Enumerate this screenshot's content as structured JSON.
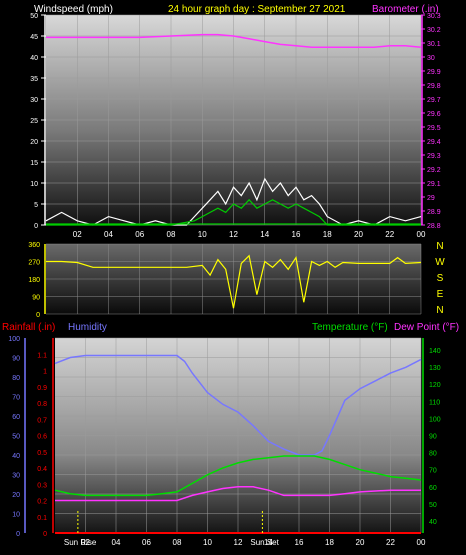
{
  "header": {
    "windspeed_label": "Windspeed (mph)",
    "title": "24 hour graph day : September 27 2021",
    "barometer_label": "Barometer (.in)"
  },
  "colors": {
    "wind": "#ffffff",
    "gust": "#00cc00",
    "barometer": "#ff33ff",
    "direction": "#ffff00",
    "humidity": "#7777ff",
    "temperature": "#00dd00",
    "dewpoint": "#ff33ff",
    "rainfall": "#ff0000",
    "sun": "#ffff00"
  },
  "compass": [
    "N",
    "W",
    "S",
    "E",
    "N"
  ],
  "lower_labels": {
    "rainfall": "Rainfall (.in)",
    "humidity": "Humidity",
    "temperature": "Temperature (°F)",
    "dewpoint": "Dew Point (°F)",
    "sunrise": "Sun Rise",
    "sunset": "Sun Set"
  },
  "chart_data": [
    {
      "type": "line",
      "title": "24 hour graph day : September 27 2021",
      "x_ticks": [
        "02",
        "04",
        "06",
        "08",
        "10",
        "12",
        "14",
        "16",
        "18",
        "20",
        "22",
        "00"
      ],
      "y_left": {
        "label": "Windspeed (mph)",
        "ticks": [
          0,
          5,
          10,
          15,
          20,
          25,
          30,
          35,
          40,
          45,
          50
        ],
        "lim": [
          0,
          50
        ]
      },
      "y_right": {
        "label": "Barometer (.in)",
        "ticks": [
          "28.8",
          "28.9",
          "29",
          "29.1",
          "29.2",
          "29.3",
          "29.4",
          "29.5",
          "29.6",
          "29.7",
          "29.8",
          "29.9",
          "30",
          "30.1",
          "30.2",
          "30.3"
        ],
        "lim": [
          28.8,
          30.3
        ]
      },
      "series": [
        {
          "name": "Barometer",
          "axis": "right",
          "x": [
            0,
            2,
            4,
            6,
            8,
            10,
            11,
            12,
            13,
            14,
            15,
            16,
            17,
            18,
            19,
            20,
            21,
            22,
            23,
            24
          ],
          "values": [
            30.14,
            30.14,
            30.14,
            30.14,
            30.15,
            30.16,
            30.16,
            30.15,
            30.13,
            30.11,
            30.09,
            30.08,
            30.07,
            30.07,
            30.07,
            30.07,
            30.07,
            30.08,
            30.08,
            30.07
          ]
        },
        {
          "name": "Wind gust",
          "axis": "left",
          "x": [
            0,
            1,
            2,
            3,
            4,
            5,
            6,
            7,
            8,
            9,
            9.5,
            10,
            10.5,
            11,
            11.5,
            12,
            12.5,
            13,
            13.5,
            14,
            14.5,
            15,
            15.5,
            16,
            16.5,
            17,
            17.5,
            18,
            19,
            20,
            21,
            22,
            23,
            24
          ],
          "values": [
            1,
            3,
            1,
            0,
            2,
            1,
            0,
            1,
            0,
            0,
            2,
            4,
            6,
            8,
            5,
            9,
            7,
            10,
            6,
            11,
            8,
            10,
            7,
            9,
            6,
            7,
            5,
            2,
            0,
            1,
            0,
            2,
            1,
            2
          ]
        },
        {
          "name": "Wind speed",
          "axis": "left",
          "x": [
            0,
            2,
            4,
            6,
            8,
            9.5,
            10,
            10.5,
            11,
            11.5,
            12,
            12.5,
            13,
            13.5,
            14,
            14.5,
            15,
            15.5,
            16,
            16.5,
            17,
            17.5,
            18,
            20,
            22,
            24
          ],
          "values": [
            0,
            0,
            0,
            0,
            0,
            1,
            2,
            3,
            4,
            3,
            5,
            4,
            6,
            4,
            5,
            6,
            5,
            4,
            5,
            4,
            3,
            2,
            0,
            0,
            0,
            0
          ]
        }
      ]
    },
    {
      "type": "line",
      "title": "",
      "y_left": {
        "ticks": [
          0,
          90,
          180,
          270,
          360
        ],
        "lim": [
          0,
          360
        ]
      },
      "series": [
        {
          "name": "Wind direction",
          "x": [
            0,
            1,
            2,
            3,
            4,
            6,
            8,
            9,
            10,
            10.5,
            11,
            11.5,
            12,
            12.5,
            13,
            13.5,
            14,
            14.5,
            15,
            15.5,
            16,
            16.5,
            17,
            17.5,
            18,
            18.5,
            19,
            20,
            22,
            22.5,
            23,
            24
          ],
          "values": [
            270,
            270,
            265,
            240,
            240,
            240,
            240,
            240,
            250,
            200,
            280,
            230,
            30,
            260,
            300,
            100,
            270,
            240,
            280,
            230,
            290,
            60,
            270,
            250,
            270,
            240,
            265,
            260,
            260,
            290,
            260,
            265
          ]
        }
      ]
    },
    {
      "type": "line",
      "title": "",
      "x_ticks": [
        "02",
        "04",
        "06",
        "08",
        "10",
        "12",
        "14",
        "16",
        "18",
        "20",
        "22",
        "00"
      ],
      "y_left_outer": {
        "label": "Humidity",
        "ticks": [
          0,
          10,
          20,
          30,
          40,
          50,
          60,
          70,
          80,
          90,
          100
        ],
        "lim": [
          0,
          100
        ]
      },
      "y_left_inner": {
        "label": "Rainfall (.in)",
        "ticks": [
          "0",
          "0.1",
          "0.2",
          "0.3",
          "0.4",
          "0.5",
          "0.6",
          "0.7",
          "0.8",
          "0.9",
          "1",
          "1.1"
        ],
        "lim": [
          0,
          1.2
        ]
      },
      "y_right": {
        "label": "Temperature (°F)",
        "ticks": [
          40,
          50,
          60,
          70,
          80,
          90,
          100,
          110,
          120,
          130,
          140
        ],
        "lim": [
          33,
          147
        ]
      },
      "series": [
        {
          "name": "Humidity",
          "axis": "left_outer",
          "x": [
            0,
            1,
            2,
            4,
            6,
            7,
            8,
            8.5,
            9,
            10,
            11,
            12,
            13,
            14,
            15,
            16,
            17,
            17.5,
            18,
            19,
            20,
            21,
            22,
            23,
            24
          ],
          "values": [
            87,
            90,
            91,
            91,
            91,
            91,
            91,
            88,
            82,
            72,
            66,
            62,
            55,
            47,
            43,
            40,
            40,
            42,
            50,
            68,
            74,
            78,
            82,
            85,
            89
          ]
        },
        {
          "name": "Temperature",
          "axis": "right",
          "x": [
            0,
            1,
            2,
            4,
            6,
            7,
            8,
            9,
            10,
            11,
            12,
            13,
            14,
            15,
            16,
            17,
            18,
            19,
            20,
            21,
            22,
            23,
            24
          ],
          "values": [
            58,
            56,
            55,
            55,
            55,
            56,
            57,
            62,
            67,
            71,
            74,
            76,
            77,
            78,
            78,
            78,
            76,
            73,
            70,
            68,
            66,
            65,
            64
          ]
        },
        {
          "name": "Dew Point",
          "axis": "right",
          "x": [
            0,
            2,
            4,
            6,
            8,
            9,
            10,
            11,
            12,
            13,
            14,
            15,
            16,
            17,
            18,
            19,
            20,
            22,
            24
          ],
          "values": [
            52,
            52,
            52,
            52,
            52,
            55,
            57,
            59,
            60,
            60,
            58,
            55,
            55,
            55,
            55,
            56,
            57,
            58,
            58
          ]
        },
        {
          "name": "Rainfall",
          "axis": "left_inner",
          "x": [
            0,
            24
          ],
          "values": [
            0,
            0
          ]
        }
      ],
      "sunrise_hour": 1.5,
      "sunset_hour": 13.6
    }
  ]
}
